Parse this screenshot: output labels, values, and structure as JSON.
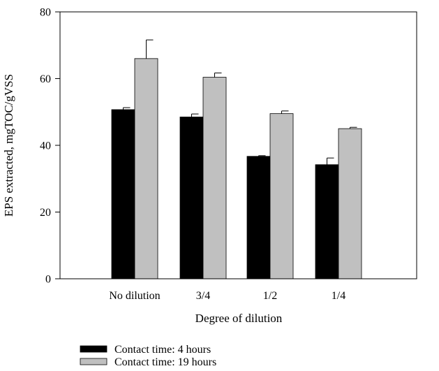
{
  "chart_data": {
    "type": "bar",
    "categories": [
      "No dilution",
      "3/4",
      "1/2",
      "1/4"
    ],
    "series": [
      {
        "name": "Contact time: 4 hours",
        "color": "#000000",
        "values": [
          50.7,
          48.5,
          36.7,
          34.2
        ],
        "errors": [
          0.6,
          0.9,
          0.2,
          2.0
        ]
      },
      {
        "name": "Contact time: 19 hours",
        "color": "#c0c0c0",
        "values": [
          66.0,
          60.4,
          49.5,
          45.0
        ],
        "errors": [
          5.6,
          1.3,
          0.8,
          0.4
        ]
      }
    ],
    "title": "",
    "xlabel": "Degree of dilution",
    "ylabel": "EPS extracted, mgTOC/gVSS",
    "ylim": [
      0,
      80
    ],
    "yticks": [
      0,
      20,
      40,
      60,
      80
    ],
    "grid": false,
    "legend_position": "bottom-left"
  }
}
